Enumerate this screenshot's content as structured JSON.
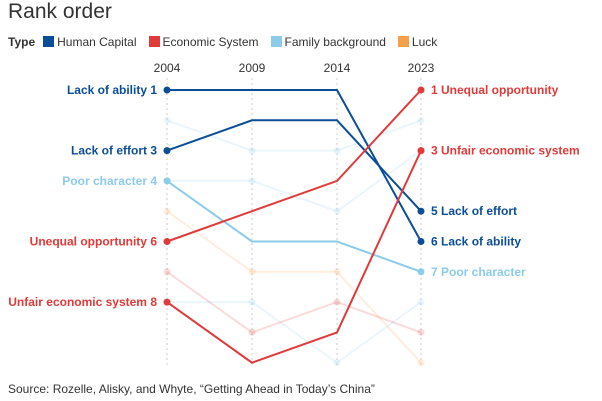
{
  "chart_data": {
    "type": "line",
    "title": "Rank order",
    "legend_title": "Type",
    "legend": [
      {
        "name": "Human Capital",
        "color": "#0b4d96"
      },
      {
        "name": "Economic System",
        "color": "#e03a3a"
      },
      {
        "name": "Family background",
        "color": "#8ccbea"
      },
      {
        "name": "Luck",
        "color": "#f5a04a"
      }
    ],
    "x": [
      "2004",
      "2009",
      "2014",
      "2023"
    ],
    "ylim": [
      1,
      10
    ],
    "series": [
      {
        "name": "Lack of ability",
        "type": "Human Capital",
        "values": [
          1,
          1,
          1,
          6
        ],
        "highlight": true,
        "left_label": "Lack of ability 1",
        "right_label": "6 Lack of ability"
      },
      {
        "name": "Lack of effort",
        "type": "Human Capital",
        "values": [
          3,
          2,
          2,
          5
        ],
        "highlight": true,
        "left_label": "Lack of effort 3",
        "right_label": "5 Lack of effort"
      },
      {
        "name": "Poor character",
        "type": "Family background",
        "values": [
          4,
          6,
          6,
          7
        ],
        "highlight": true,
        "left_label": "Poor character 4",
        "right_label": "7 Poor character"
      },
      {
        "name": "Unequal opportunity",
        "type": "Economic System",
        "values": [
          6,
          5,
          4,
          1
        ],
        "highlight": true,
        "left_label": "Unequal opportunity 6",
        "right_label": "1 Unequal opportunity"
      },
      {
        "name": "Unfair economic system",
        "type": "Economic System",
        "values": [
          8,
          10,
          9,
          3
        ],
        "highlight": true,
        "left_label": "Unfair economic system 8",
        "right_label": "3 Unfair economic system"
      },
      {
        "name": "",
        "type": "Family background",
        "values": [
          2,
          3,
          3,
          2
        ],
        "highlight": false
      },
      {
        "name": "",
        "type": "Family background",
        "values": [
          4,
          4,
          5,
          3
        ],
        "highlight": false
      },
      {
        "name": "",
        "type": "Family background",
        "values": [
          8,
          8,
          10,
          8
        ],
        "highlight": false
      },
      {
        "name": "",
        "type": "Luck",
        "values": [
          5,
          7,
          7,
          10
        ],
        "highlight": false
      },
      {
        "name": "",
        "type": "Economic System",
        "values": [
          7,
          9,
          8,
          9
        ],
        "highlight": false
      }
    ],
    "source": "Source: Rozelle, Alisky, and Whyte, “Getting Ahead in Today’s China”"
  }
}
